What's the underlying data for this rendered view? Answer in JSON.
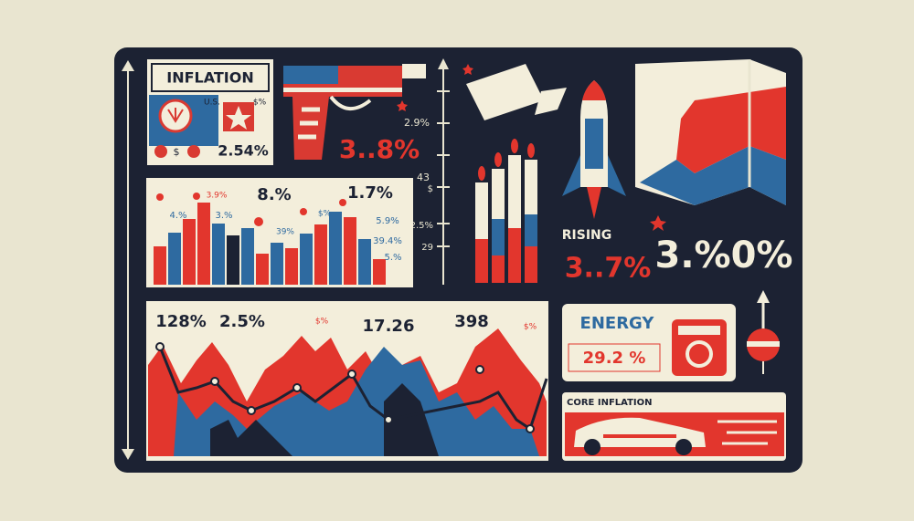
{
  "header": {
    "title": "INFLATION",
    "country": "U.S.",
    "symbol": "$%",
    "currency": "$",
    "rate": "2.54%"
  },
  "gun_rate": "3..8%",
  "scale": {
    "labels": [
      "2.9%",
      "43",
      "$",
      "-2.5%",
      "29"
    ]
  },
  "bar_chart": {
    "labels": [
      "8.%",
      "1.7%",
      "4.%",
      "3.%",
      "3.9%",
      "$%",
      "39%",
      "5.9%",
      "39.4%",
      "5.%"
    ]
  },
  "rising": {
    "label": "RISING",
    "value": "3..7%"
  },
  "big_rate": "3.%0%",
  "line_chart": {
    "labels": [
      "128%",
      "2.5%",
      "$%",
      "17.26",
      "398",
      "$%"
    ]
  },
  "energy": {
    "title": "ENERGY",
    "value": "29.2 %"
  },
  "core": {
    "title": "CORE INFLATION"
  }
}
